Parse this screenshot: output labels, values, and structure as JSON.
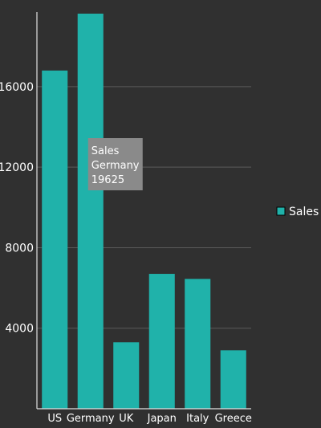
{
  "chart_data": {
    "type": "bar",
    "categories": [
      "US",
      "Germany",
      "UK",
      "Japan",
      "Italy",
      "Greece"
    ],
    "series": [
      {
        "name": "Sales",
        "values": [
          16800,
          19625,
          3300,
          6700,
          6450,
          2900
        ]
      }
    ],
    "ylim": [
      0,
      19625
    ],
    "yticks": [
      4000,
      8000,
      12000,
      16000
    ],
    "grid": true,
    "legend": "right",
    "colors": {
      "background": "#303030",
      "bar": "#20b2aa",
      "grid": "#5a5a5a",
      "axis": "#e0e0e0",
      "text": "#ffffff",
      "tooltip_bg": "#8a8a8a"
    }
  },
  "tooltip": {
    "series": "Sales",
    "category": "Germany",
    "value": "19625"
  },
  "legend": {
    "label": "Sales"
  }
}
